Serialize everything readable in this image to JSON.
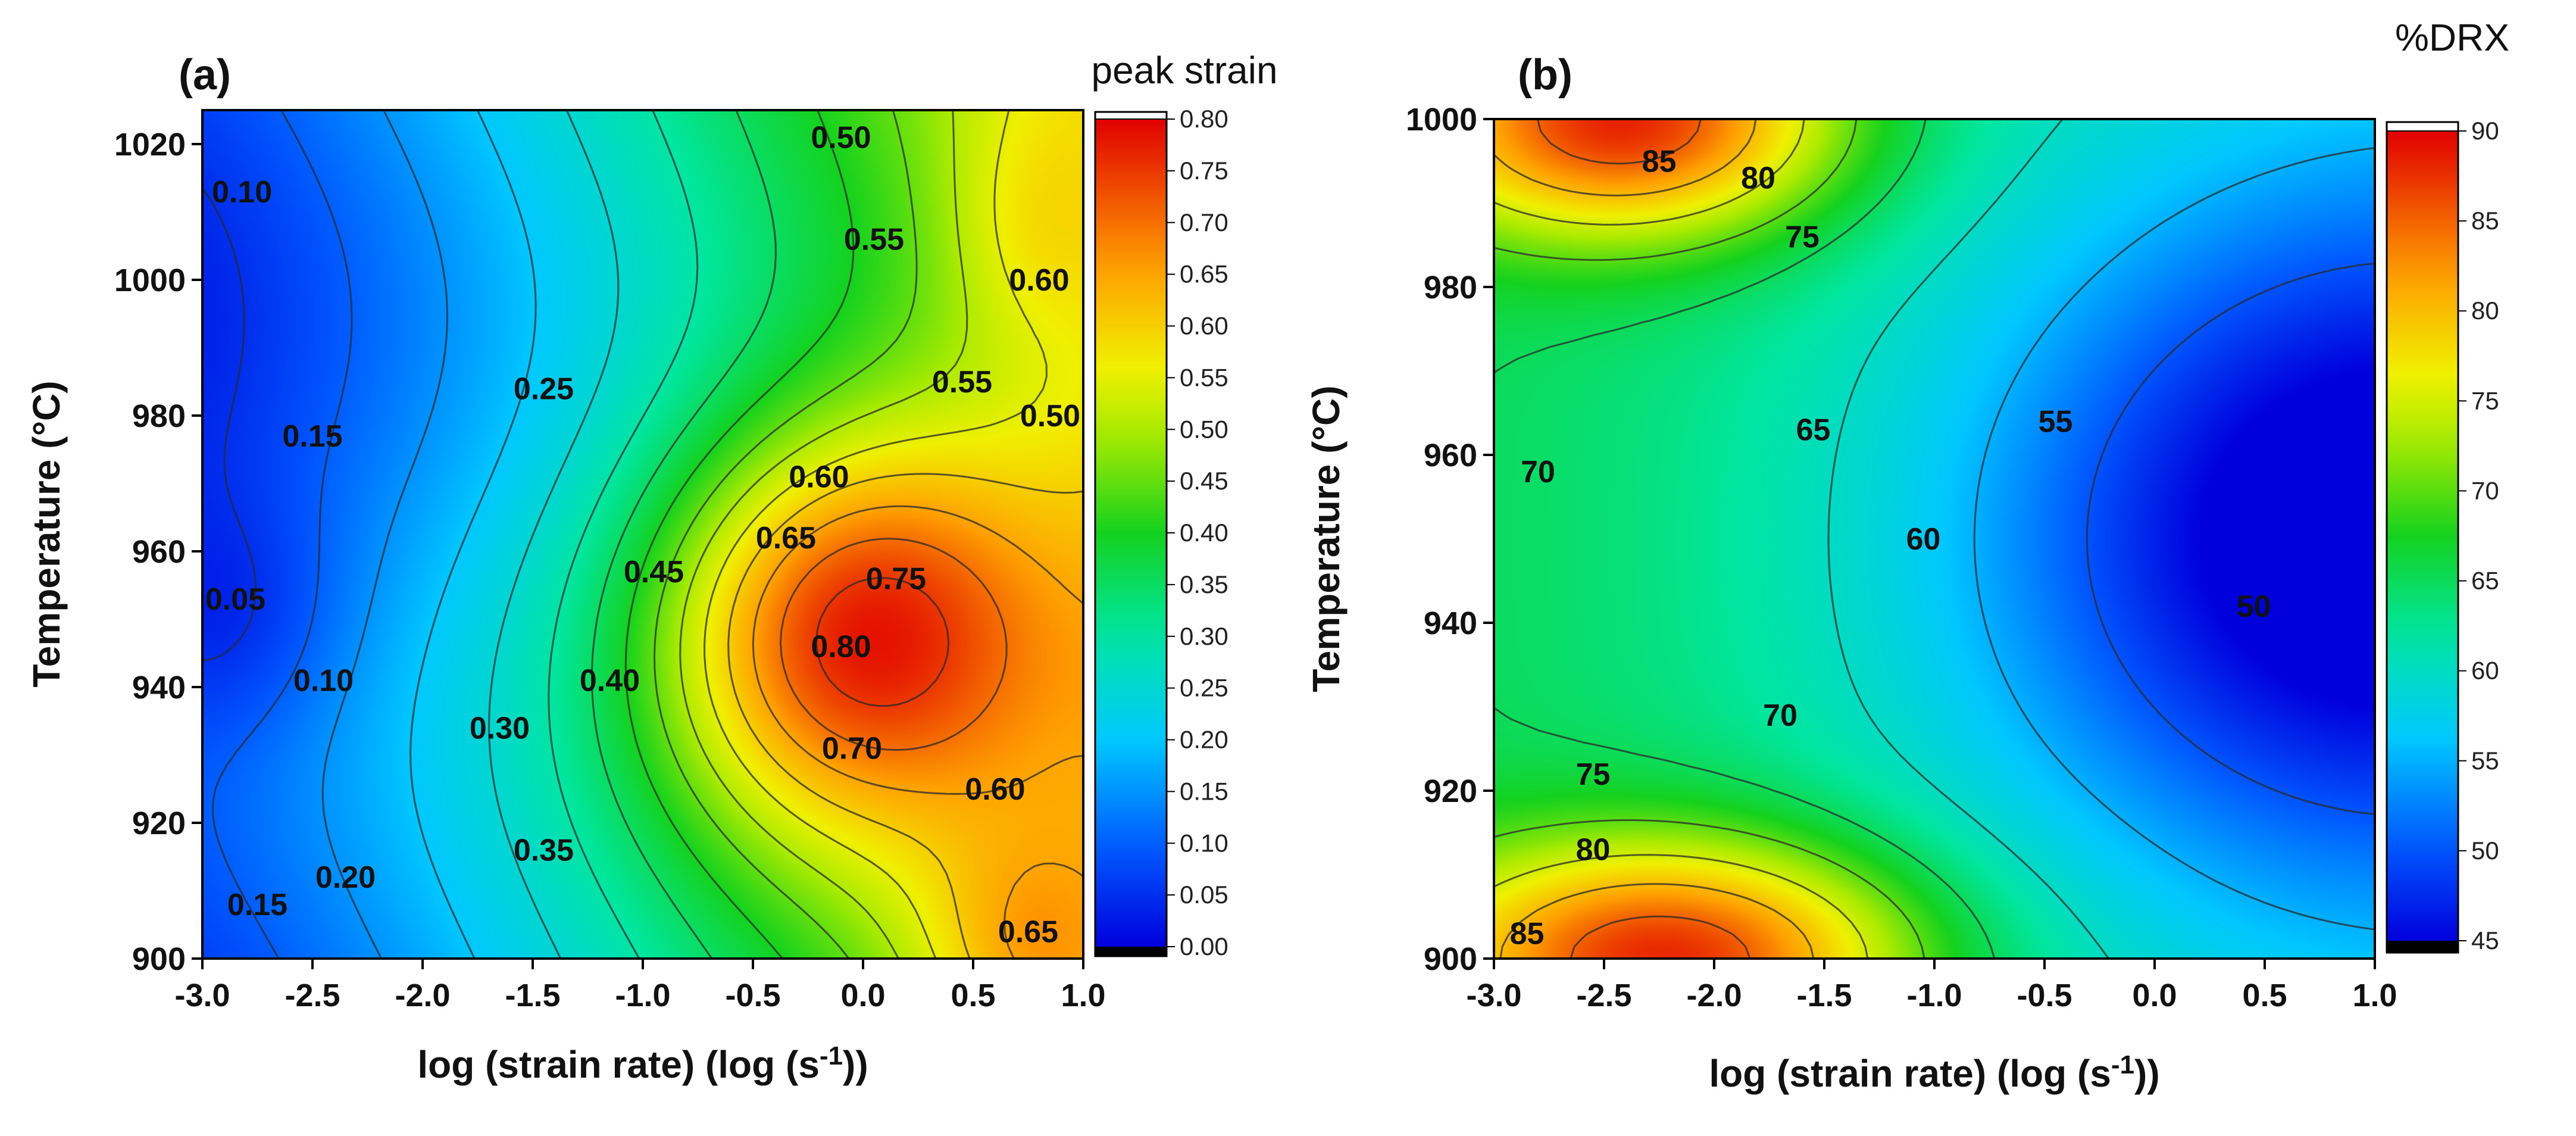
{
  "chart_data": [
    {
      "type": "heatmap",
      "panel_label": "(a)",
      "title": "",
      "xlabel": "log (strain rate) (log (s",
      "xlabel_sup": "-1",
      "xlabel_end": "))",
      "ylabel": "Temperature (°C)",
      "xlim": [
        -3.0,
        1.0
      ],
      "ylim": [
        900,
        1025
      ],
      "xticks": [
        "-3.0",
        "-2.5",
        "-2.0",
        "-1.5",
        "-1.0",
        "-0.5",
        "0.0",
        "0.5",
        "1.0"
      ],
      "yticks": [
        "900",
        "920",
        "940",
        "960",
        "980",
        "1000",
        "1020"
      ],
      "colorbar": {
        "title": "peak strain",
        "range": [
          0.0,
          0.8
        ],
        "ticks": [
          "0.00",
          "0.05",
          "0.10",
          "0.15",
          "0.20",
          "0.25",
          "0.30",
          "0.35",
          "0.40",
          "0.45",
          "0.50",
          "0.55",
          "0.60",
          "0.65",
          "0.70",
          "0.75",
          "0.80"
        ]
      },
      "peaks": [
        {
          "x": 0.05,
          "y": 947,
          "value": 0.82,
          "sx": 0.62,
          "sy": 20
        },
        {
          "x": 0.9,
          "y": 1010,
          "value": 0.6,
          "sx": 0.3,
          "sy": 14
        },
        {
          "x": 0.85,
          "y": 902,
          "value": 0.67,
          "sx": 0.35,
          "sy": 12
        }
      ],
      "contour_labels": [
        {
          "text": "0.10",
          "x": -2.82,
          "y": 1013
        },
        {
          "text": "0.15",
          "x": -2.5,
          "y": 977
        },
        {
          "text": "0.05",
          "x": -2.85,
          "y": 953
        },
        {
          "text": "0.10",
          "x": -2.45,
          "y": 941
        },
        {
          "text": "0.15",
          "x": -2.75,
          "y": 908
        },
        {
          "text": "0.20",
          "x": -2.35,
          "y": 912
        },
        {
          "text": "0.25",
          "x": -1.45,
          "y": 984
        },
        {
          "text": "0.30",
          "x": -1.65,
          "y": 934
        },
        {
          "text": "0.35",
          "x": -1.45,
          "y": 916
        },
        {
          "text": "0.40",
          "x": -1.15,
          "y": 941
        },
        {
          "text": "0.45",
          "x": -0.95,
          "y": 957
        },
        {
          "text": "0.50",
          "x": -0.1,
          "y": 1021
        },
        {
          "text": "0.55",
          "x": 0.05,
          "y": 1006
        },
        {
          "text": "0.60",
          "x": 0.8,
          "y": 1000
        },
        {
          "text": "0.55",
          "x": 0.45,
          "y": 985
        },
        {
          "text": "0.50",
          "x": 0.85,
          "y": 980
        },
        {
          "text": "0.60",
          "x": -0.2,
          "y": 971
        },
        {
          "text": "0.65",
          "x": -0.35,
          "y": 962
        },
        {
          "text": "0.75",
          "x": 0.15,
          "y": 956
        },
        {
          "text": "0.80",
          "x": -0.1,
          "y": 946
        },
        {
          "text": "0.70",
          "x": -0.05,
          "y": 931
        },
        {
          "text": "0.60",
          "x": 0.6,
          "y": 925
        },
        {
          "text": "0.65",
          "x": 0.75,
          "y": 904
        }
      ]
    },
    {
      "type": "heatmap",
      "panel_label": "(b)",
      "title": "",
      "xlabel": "log (strain rate) (log (s",
      "xlabel_sup": "-1",
      "xlabel_end": "))",
      "ylabel": "Temperature (°C)",
      "xlim": [
        -3.0,
        1.0
      ],
      "ylim": [
        900,
        1000
      ],
      "xticks": [
        "-3.0",
        "-2.5",
        "-2.0",
        "-1.5",
        "-1.0",
        "-0.5",
        "0.0",
        "0.5",
        "1.0"
      ],
      "yticks": [
        "900",
        "920",
        "940",
        "960",
        "980",
        "1000"
      ],
      "colorbar": {
        "title": "%DRX",
        "range": [
          45,
          90
        ],
        "ticks": [
          "45",
          "50",
          "55",
          "60",
          "65",
          "70",
          "75",
          "80",
          "85",
          "90"
        ]
      },
      "contour_labels": [
        {
          "text": "85",
          "x": -2.25,
          "y": 995
        },
        {
          "text": "80",
          "x": -1.8,
          "y": 993
        },
        {
          "text": "75",
          "x": -1.6,
          "y": 986
        },
        {
          "text": "65",
          "x": -1.55,
          "y": 963
        },
        {
          "text": "70",
          "x": -2.8,
          "y": 958
        },
        {
          "text": "55",
          "x": -0.45,
          "y": 964
        },
        {
          "text": "60",
          "x": -1.05,
          "y": 950
        },
        {
          "text": "50",
          "x": 0.45,
          "y": 942
        },
        {
          "text": "70",
          "x": -1.7,
          "y": 929
        },
        {
          "text": "75",
          "x": -2.55,
          "y": 922
        },
        {
          "text": "80",
          "x": -2.55,
          "y": 913
        },
        {
          "text": "85",
          "x": -2.85,
          "y": 903
        }
      ]
    }
  ]
}
